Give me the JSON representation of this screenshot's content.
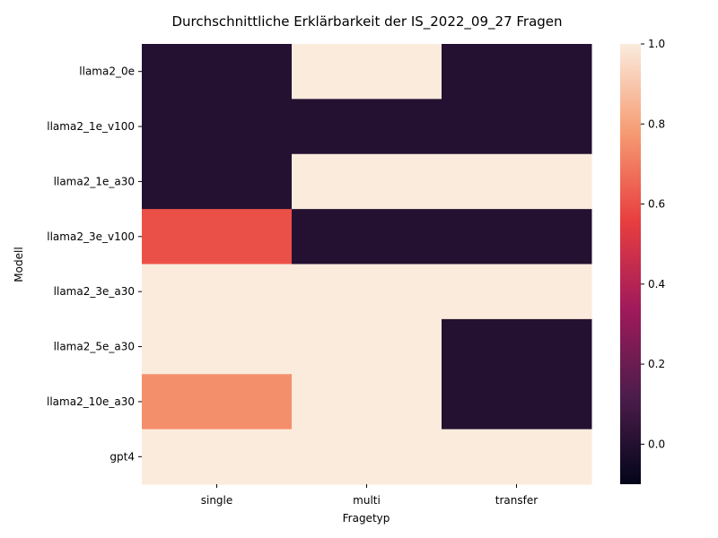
{
  "chart_data": {
    "type": "heatmap",
    "title": "Durchschnittliche Erklärbarkeit der IS_2022_09_27 Fragen",
    "xlabel": "Fragetyp",
    "ylabel": "Modell",
    "x_categories": [
      "single",
      "multi",
      "transfer"
    ],
    "y_categories": [
      "llama2_0e",
      "llama2_1e_v100",
      "llama2_1e_a30",
      "llama2_3e_v100",
      "llama2_3e_a30",
      "llama2_5e_a30",
      "llama2_10e_a30",
      "gpt4"
    ],
    "values": [
      [
        0,
        1,
        0
      ],
      [
        0,
        0,
        0
      ],
      [
        0,
        1,
        1
      ],
      [
        0.6,
        0,
        0
      ],
      [
        1,
        1,
        1
      ],
      [
        1,
        1,
        0
      ],
      [
        0.75,
        1,
        0
      ],
      [
        1,
        1,
        1
      ]
    ],
    "colorbar": {
      "range": [
        -0.1,
        1.0
      ],
      "ticks": [
        -0.0,
        0.2,
        0.4,
        0.6,
        0.8,
        1.0
      ],
      "tick_labels": [
        "0.0",
        "0.2",
        "0.4",
        "0.6",
        "0.8",
        "1.0"
      ],
      "colormap": "rocket",
      "colors": [
        "#03051a",
        "#4c1d4b",
        "#a11a5b",
        "#e83f3f",
        "#f69c73",
        "#faebdd"
      ]
    },
    "grid": false
  }
}
